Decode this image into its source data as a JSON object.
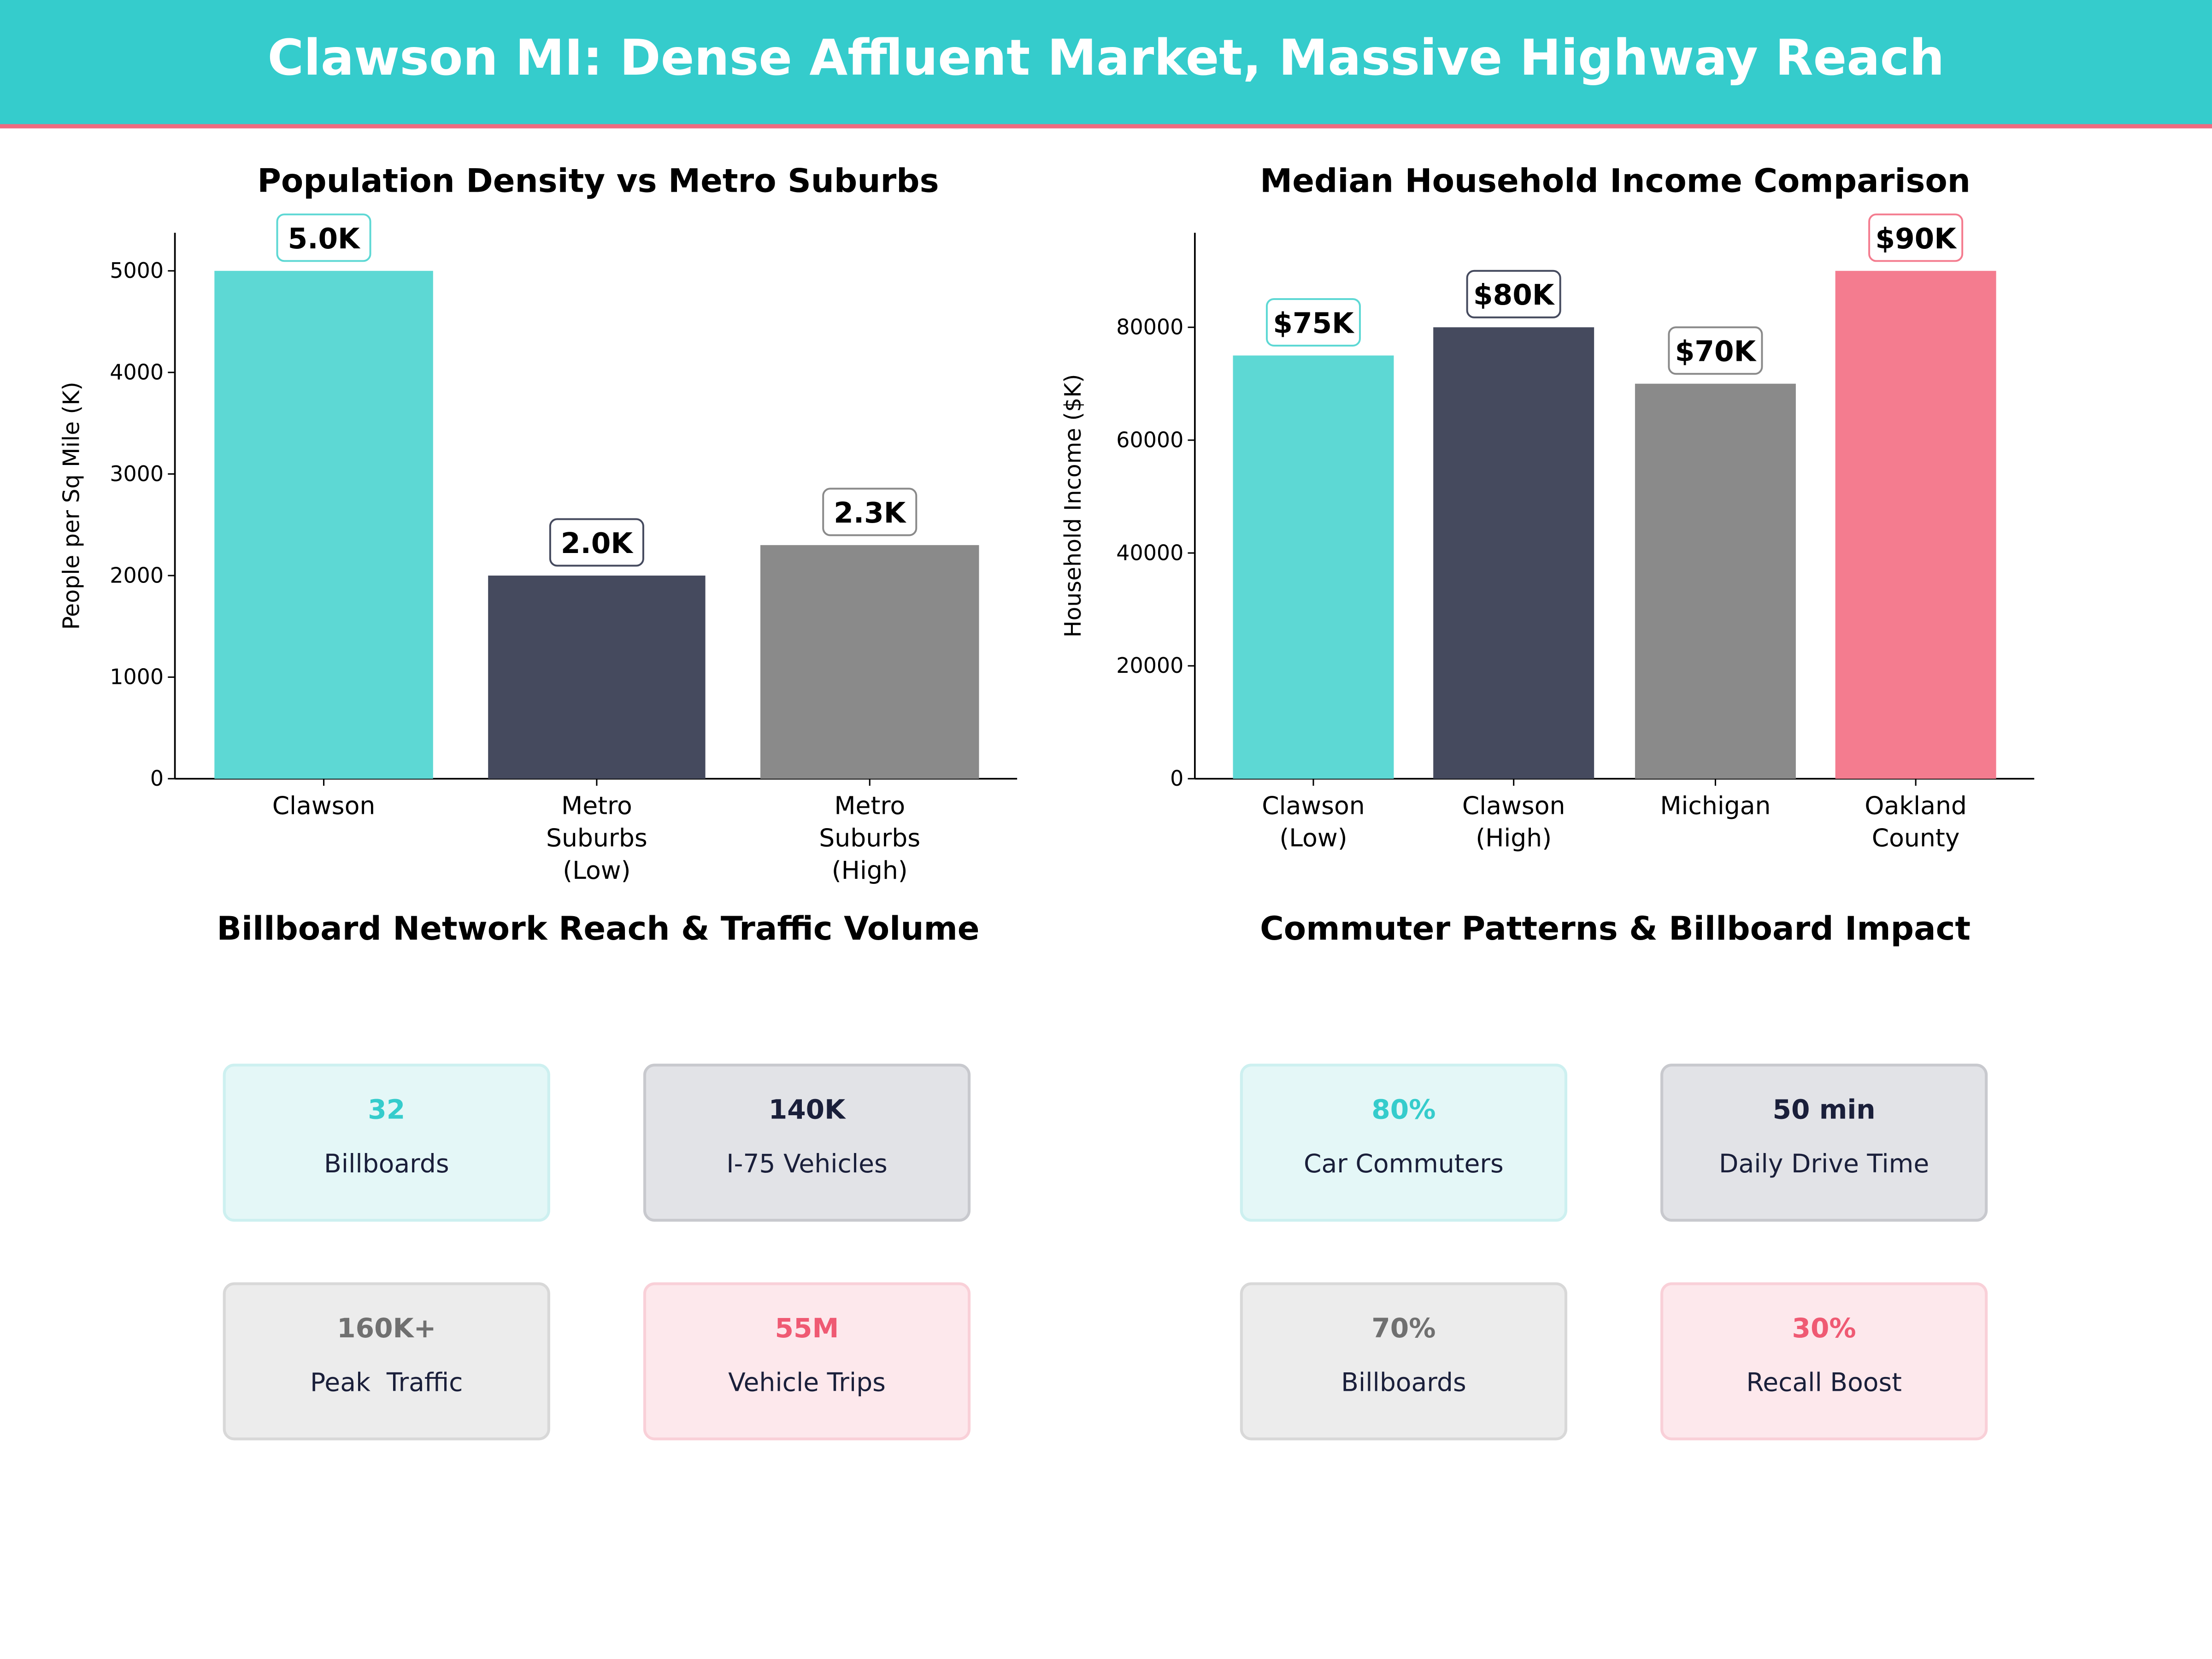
{
  "title": "Clawson MI: Dense Affluent Market, Massive Highway Reach",
  "colors": {
    "header": "#35cccc",
    "accent_line": "#f06a7f",
    "teal": "#5dd8d4",
    "dark": "#454a5e",
    "gray": "#8a8a8a",
    "pink": "#f47c8f"
  },
  "chart_data": [
    {
      "type": "bar",
      "title": "Population Density vs Metro Suburbs",
      "xlabel": "",
      "ylabel": "People per Sq Mile (K)",
      "categories": [
        "Clawson",
        "Metro\nSuburbs\n(Low)",
        "Metro\nSuburbs\n(High)"
      ],
      "values": [
        5000,
        2000,
        2300
      ],
      "data_labels": [
        "5.0K",
        "2.0K",
        "2.3K"
      ],
      "bar_colors": [
        "#5dd8d4",
        "#454a5e",
        "#8a8a8a"
      ],
      "label_border_colors": [
        "#5dd8d4",
        "#454a5e",
        "#8a8a8a"
      ],
      "yticks": [
        0,
        1000,
        2000,
        3000,
        4000,
        5000
      ],
      "ylim": [
        0,
        5375
      ],
      "grid": false
    },
    {
      "type": "bar",
      "title": "Median Household Income Comparison",
      "xlabel": "",
      "ylabel": "Household Income ($K)",
      "categories": [
        "Clawson\n(Low)",
        "Clawson\n(High)",
        "Michigan",
        "Oakland\nCounty"
      ],
      "values": [
        75000,
        80000,
        70000,
        90000
      ],
      "data_labels": [
        "$75K",
        "$80K",
        "$70K",
        "$90K"
      ],
      "bar_colors": [
        "#5dd8d4",
        "#454a5e",
        "#8a8a8a",
        "#f47c8f"
      ],
      "label_border_colors": [
        "#5dd8d4",
        "#454a5e",
        "#8a8a8a",
        "#f47c8f"
      ],
      "yticks": [
        0,
        20000,
        40000,
        60000,
        80000
      ],
      "ylim": [
        0,
        96750
      ],
      "grid": false
    }
  ],
  "panels": [
    {
      "title": "Billboard Network Reach & Traffic Volume",
      "cards": [
        {
          "value": "32",
          "label": "Billboards",
          "style": "teal"
        },
        {
          "value": "140K",
          "label": "I-75 Vehicles",
          "style": "dark"
        },
        {
          "value": "160K+",
          "label": "Peak  Traffic",
          "style": "gray"
        },
        {
          "value": "55M",
          "label": "Vehicle Trips",
          "style": "pink"
        }
      ]
    },
    {
      "title": "Commuter Patterns & Billboard Impact",
      "cards": [
        {
          "value": "80%",
          "label": "Car Commuters",
          "style": "teal"
        },
        {
          "value": "50 min",
          "label": "Daily Drive Time",
          "style": "dark"
        },
        {
          "value": "70%",
          "label": "Billboards",
          "style": "gray"
        },
        {
          "value": "30%",
          "label": "Recall Boost",
          "style": "pink"
        }
      ]
    }
  ]
}
